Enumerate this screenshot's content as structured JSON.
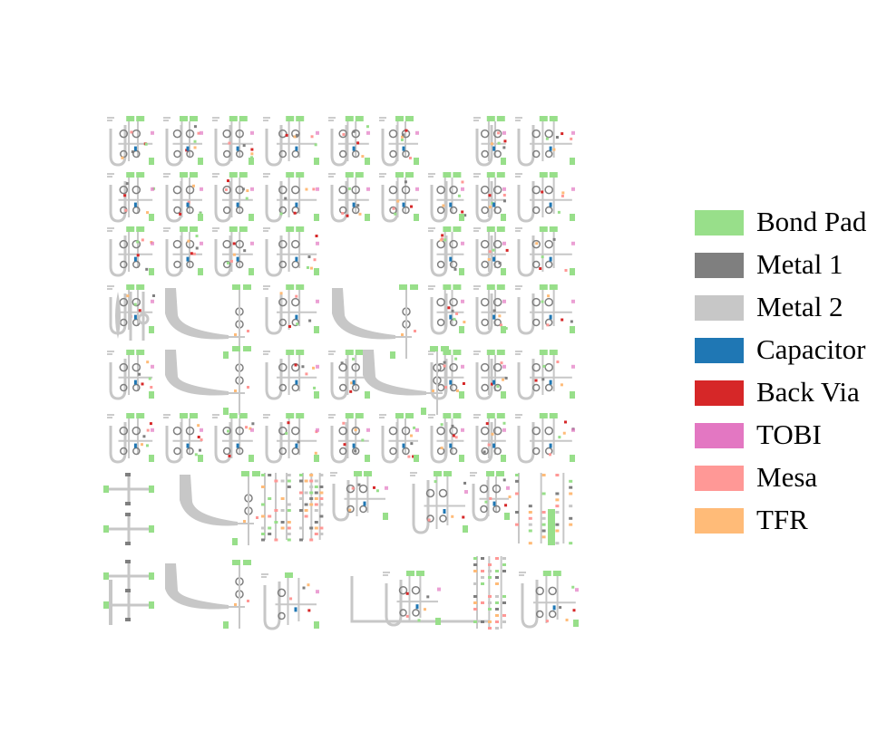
{
  "legend": {
    "items": [
      {
        "label": "Bond Pad",
        "color": "#98df8a"
      },
      {
        "label": "Metal 1",
        "color": "#7f7f7f"
      },
      {
        "label": "Metal 2",
        "color": "#c7c7c7"
      },
      {
        "label": "Capacitor",
        "color": "#1f77b4"
      },
      {
        "label": "Back Via",
        "color": "#d62728"
      },
      {
        "label": "TOBI",
        "color": "#e377c2"
      },
      {
        "label": "Mesa",
        "color": "#ff9896"
      },
      {
        "label": "TFR",
        "color": "#ffbb78"
      }
    ]
  }
}
